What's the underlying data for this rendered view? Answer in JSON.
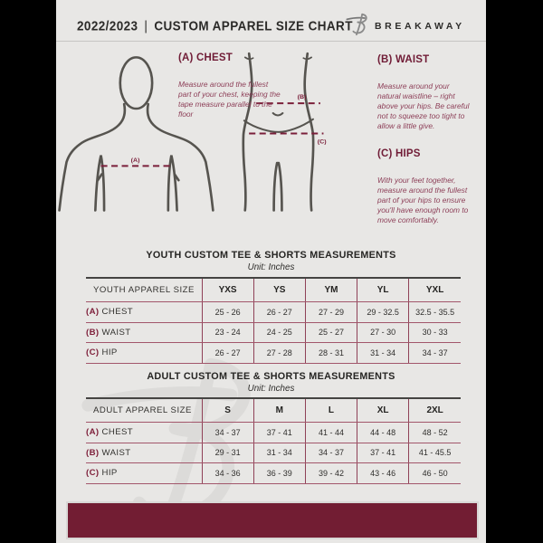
{
  "header": {
    "year": "2022/2023",
    "separator": "|",
    "title": "CUSTOM APPAREL SIZE CHART",
    "brand": "BREAKAWAY",
    "logo_icon": "breakaway-b-logo"
  },
  "diagram": {
    "chest_label": "(A)",
    "waist_label": "(B)",
    "hips_label": "(C)"
  },
  "instructions": {
    "chest": {
      "heading": "(A) CHEST",
      "body": "Measure around the fullest part of your chest, keeping the tape measure parallel to the floor"
    },
    "waist": {
      "heading": "(B) WAIST",
      "body": "Measure around your natural waistline – right above your hips. Be careful not to squeeze too tight to allow a little give."
    },
    "hips": {
      "heading": "(C) HIPS",
      "body": "With your feet together, measure around the fullest part of your hips to ensure you'll have enough room to move comfortably."
    }
  },
  "youth_table": {
    "title": "YOUTH CUSTOM TEE & SHORTS MEASUREMENTS",
    "unit": "Unit: Inches",
    "size_column_header": "YOUTH APPAREL SIZE",
    "sizes": [
      "YXS",
      "YS",
      "YM",
      "YL",
      "YXL"
    ],
    "rows": [
      {
        "prefix": "(A)",
        "label": "CHEST",
        "values": [
          "25 - 26",
          "26 - 27",
          "27 - 29",
          "29 - 32.5",
          "32.5 - 35.5"
        ]
      },
      {
        "prefix": "(B)",
        "label": "WAIST",
        "values": [
          "23 - 24",
          "24 - 25",
          "25 - 27",
          "27 - 30",
          "30 - 33"
        ]
      },
      {
        "prefix": "(C)",
        "label": "HIP",
        "values": [
          "26 - 27",
          "27 - 28",
          "28 - 31",
          "31 - 34",
          "34 - 37"
        ]
      }
    ]
  },
  "adult_table": {
    "title": "ADULT CUSTOM TEE & SHORTS MEASUREMENTS",
    "unit": "Unit: Inches",
    "size_column_header": "ADULT APPAREL SIZE",
    "sizes": [
      "S",
      "M",
      "L",
      "XL",
      "2XL"
    ],
    "rows": [
      {
        "prefix": "(A)",
        "label": "CHEST",
        "values": [
          "34 - 37",
          "37 - 41",
          "41 - 44",
          "44 - 48",
          "48 - 52"
        ]
      },
      {
        "prefix": "(B)",
        "label": "WAIST",
        "values": [
          "29 - 31",
          "31 - 34",
          "34 - 37",
          "37 - 41",
          "41 - 45.5"
        ]
      },
      {
        "prefix": "(C)",
        "label": "HIP",
        "values": [
          "34 - 36",
          "36 - 39",
          "39 - 42",
          "43 - 46",
          "46 - 50"
        ]
      }
    ]
  },
  "colors": {
    "accent_maroon": "#7a1f3a",
    "body_text_maroon": "#8d3f58",
    "footer_maroon": "#721d33",
    "dark_text": "#2b2a28",
    "page_background": "#e8e7e5",
    "outer_background": "#000000",
    "figure_outline": "#56544f"
  }
}
